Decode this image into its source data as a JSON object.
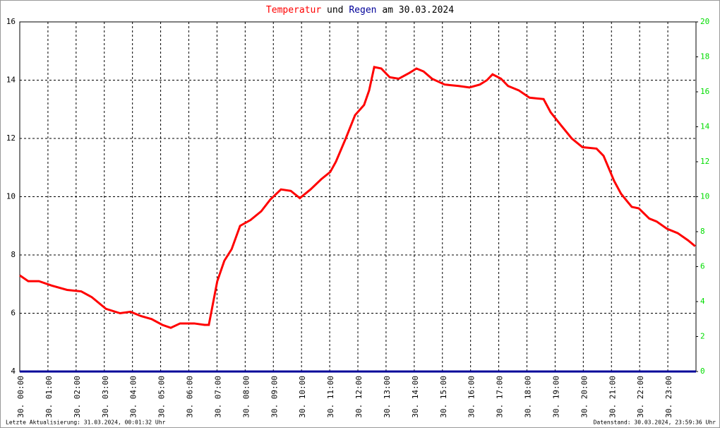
{
  "chart_data": {
    "type": "line",
    "title_joiner": "und",
    "title_date": "am 30.03.2024",
    "footer_left": "Letzte Aktualisierung: 31.03.2024, 00:01:32 Uhr",
    "footer_right": "Datenstand: 30.03.2024, 23:59:36 Uhr",
    "xlim": [
      0,
      24
    ],
    "xticks": [
      {
        "value": 0,
        "label": "30. 00:00"
      },
      {
        "value": 1,
        "label": "30. 01:00"
      },
      {
        "value": 2,
        "label": "30. 02:00"
      },
      {
        "value": 3,
        "label": "30. 03:00"
      },
      {
        "value": 4,
        "label": "30. 04:00"
      },
      {
        "value": 5,
        "label": "30. 05:00"
      },
      {
        "value": 6,
        "label": "30. 06:00"
      },
      {
        "value": 7,
        "label": "30. 07:00"
      },
      {
        "value": 8,
        "label": "30. 08:00"
      },
      {
        "value": 9,
        "label": "30. 09:00"
      },
      {
        "value": 10,
        "label": "30. 10:00"
      },
      {
        "value": 11,
        "label": "30. 11:00"
      },
      {
        "value": 12,
        "label": "30. 12:00"
      },
      {
        "value": 13,
        "label": "30. 13:00"
      },
      {
        "value": 14,
        "label": "30. 14:00"
      },
      {
        "value": 15,
        "label": "30. 15:00"
      },
      {
        "value": 16,
        "label": "30. 16:00"
      },
      {
        "value": 17,
        "label": "30. 17:00"
      },
      {
        "value": 18,
        "label": "30. 18:00"
      },
      {
        "value": 19,
        "label": "30. 19:00"
      },
      {
        "value": 20,
        "label": "30. 20:00"
      },
      {
        "value": 21,
        "label": "30. 21:00"
      },
      {
        "value": 22,
        "label": "30. 22:00"
      },
      {
        "value": 23,
        "label": "30. 23:00"
      }
    ],
    "ylim": [
      4,
      16
    ],
    "yticks": [
      4,
      6,
      8,
      10,
      12,
      14,
      16
    ],
    "y2lim": [
      0,
      20
    ],
    "y2ticks": [
      0,
      2,
      4,
      6,
      8,
      10,
      12,
      14,
      16,
      18,
      20
    ],
    "y2tick_color": "#00dd00",
    "grid": true,
    "series": [
      {
        "name": "Temperatur",
        "color": "#ff0000",
        "x": [
          0,
          0.3,
          0.68,
          1.13,
          1.68,
          2.18,
          2.56,
          3.06,
          3.56,
          3.93,
          4.31,
          4.68,
          5.06,
          5.36,
          5.69,
          6.19,
          6.56,
          6.71,
          6.81,
          7.01,
          7.26,
          7.52,
          7.82,
          8.19,
          8.57,
          8.89,
          9.27,
          9.62,
          9.94,
          10.32,
          10.7,
          11.02,
          11.22,
          11.57,
          11.9,
          12.22,
          12.4,
          12.58,
          12.83,
          13.13,
          13.45,
          13.83,
          14.08,
          14.33,
          14.63,
          15.08,
          15.58,
          15.96,
          16.33,
          16.58,
          16.78,
          17.08,
          17.33,
          17.71,
          18.09,
          18.59,
          18.84,
          19.21,
          19.59,
          19.97,
          20.47,
          20.72,
          21.09,
          21.34,
          21.72,
          21.97,
          22.34,
          22.6,
          22.97,
          23.35,
          23.72,
          23.97
        ],
        "values": [
          7.3,
          7.1,
          7.1,
          6.95,
          6.8,
          6.75,
          6.55,
          6.15,
          6.0,
          6.05,
          5.9,
          5.8,
          5.6,
          5.5,
          5.65,
          5.65,
          5.6,
          5.6,
          6.1,
          7.1,
          7.8,
          8.2,
          9.0,
          9.2,
          9.5,
          9.9,
          10.25,
          10.2,
          9.95,
          10.25,
          10.6,
          10.85,
          11.2,
          12.0,
          12.8,
          13.15,
          13.65,
          14.45,
          14.4,
          14.1,
          14.05,
          14.25,
          14.4,
          14.3,
          14.05,
          13.85,
          13.8,
          13.75,
          13.85,
          14.0,
          14.2,
          14.05,
          13.8,
          13.65,
          13.4,
          13.35,
          12.9,
          12.45,
          12.0,
          11.7,
          11.65,
          11.4,
          10.55,
          10.1,
          9.65,
          9.6,
          9.25,
          9.15,
          8.9,
          8.75,
          8.5,
          8.3
        ]
      },
      {
        "name": "Regen",
        "color": "#000099",
        "axis": "y2",
        "x": [
          0,
          24
        ],
        "values": [
          0,
          0
        ]
      }
    ]
  }
}
